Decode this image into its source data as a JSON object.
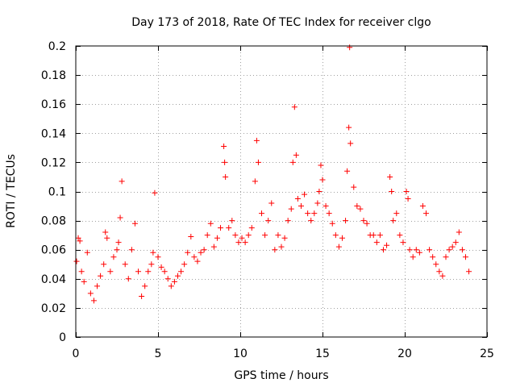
{
  "chart_data": {
    "type": "scatter",
    "title": "Day 173 of 2018, Rate Of TEC Index for receiver clgo",
    "xlabel": "GPS time / hours",
    "ylabel": "ROTI / TECUs",
    "xlim": [
      0,
      25
    ],
    "ylim": [
      0,
      0.2
    ],
    "xticks": [
      "0",
      "5",
      "10",
      "15",
      "20",
      "25"
    ],
    "yticks": [
      "0",
      "0.02",
      "0.04",
      "0.06",
      "0.08",
      "0.1",
      "0.12",
      "0.14",
      "0.16",
      "0.18",
      "0.2"
    ],
    "grid": true,
    "marker": "+",
    "color": "#ff0000",
    "series": [
      {
        "name": "ROTI",
        "x": [
          0.05,
          0.15,
          0.25,
          0.35,
          0.5,
          0.7,
          0.9,
          1.1,
          1.3,
          1.5,
          1.7,
          1.8,
          1.9,
          2.1,
          2.3,
          2.5,
          2.6,
          2.7,
          2.8,
          3.0,
          3.2,
          3.4,
          3.6,
          3.8,
          4.0,
          4.2,
          4.4,
          4.6,
          4.7,
          4.8,
          5.0,
          5.2,
          5.4,
          5.6,
          5.8,
          6.0,
          6.2,
          6.4,
          6.6,
          6.8,
          7.0,
          7.2,
          7.4,
          7.6,
          7.8,
          8.0,
          8.2,
          8.4,
          8.6,
          8.8,
          9.0,
          9.05,
          9.1,
          9.3,
          9.5,
          9.7,
          9.9,
          10.1,
          10.3,
          10.5,
          10.7,
          10.9,
          11.0,
          11.1,
          11.3,
          11.5,
          11.7,
          11.9,
          12.1,
          12.3,
          12.5,
          12.7,
          12.9,
          13.1,
          13.2,
          13.3,
          13.4,
          13.5,
          13.7,
          13.9,
          14.1,
          14.3,
          14.5,
          14.7,
          14.8,
          14.9,
          15.0,
          15.2,
          15.4,
          15.6,
          15.8,
          16.0,
          16.2,
          16.4,
          16.5,
          16.6,
          16.65,
          16.7,
          16.9,
          17.1,
          17.3,
          17.5,
          17.7,
          17.9,
          18.1,
          18.3,
          18.5,
          18.7,
          18.9,
          19.1,
          19.2,
          19.3,
          19.5,
          19.7,
          19.9,
          20.1,
          20.2,
          20.3,
          20.5,
          20.7,
          20.9,
          21.1,
          21.3,
          21.5,
          21.7,
          21.9,
          22.1,
          22.3,
          22.5,
          22.7,
          22.9,
          23.1,
          23.3,
          23.5,
          23.7,
          23.9
        ],
        "y": [
          0.052,
          0.068,
          0.066,
          0.045,
          0.038,
          0.058,
          0.03,
          0.025,
          0.035,
          0.042,
          0.05,
          0.072,
          0.068,
          0.045,
          0.055,
          0.06,
          0.065,
          0.082,
          0.107,
          0.05,
          0.04,
          0.06,
          0.078,
          0.045,
          0.028,
          0.035,
          0.045,
          0.05,
          0.058,
          0.099,
          0.055,
          0.048,
          0.045,
          0.04,
          0.035,
          0.038,
          0.042,
          0.045,
          0.05,
          0.058,
          0.069,
          0.055,
          0.052,
          0.058,
          0.06,
          0.07,
          0.078,
          0.062,
          0.068,
          0.075,
          0.131,
          0.12,
          0.11,
          0.075,
          0.08,
          0.07,
          0.065,
          0.068,
          0.065,
          0.07,
          0.075,
          0.107,
          0.135,
          0.12,
          0.085,
          0.07,
          0.08,
          0.092,
          0.06,
          0.07,
          0.062,
          0.068,
          0.08,
          0.088,
          0.12,
          0.158,
          0.125,
          0.095,
          0.09,
          0.098,
          0.085,
          0.08,
          0.085,
          0.092,
          0.1,
          0.118,
          0.108,
          0.09,
          0.085,
          0.078,
          0.07,
          0.062,
          0.068,
          0.08,
          0.114,
          0.144,
          0.199,
          0.133,
          0.103,
          0.09,
          0.088,
          0.08,
          0.078,
          0.07,
          0.07,
          0.065,
          0.07,
          0.06,
          0.063,
          0.11,
          0.1,
          0.08,
          0.085,
          0.07,
          0.065,
          0.1,
          0.095,
          0.06,
          0.055,
          0.06,
          0.058,
          0.09,
          0.085,
          0.06,
          0.055,
          0.05,
          0.045,
          0.042,
          0.055,
          0.06,
          0.062,
          0.065,
          0.072,
          0.06,
          0.055,
          0.045
        ]
      }
    ]
  }
}
